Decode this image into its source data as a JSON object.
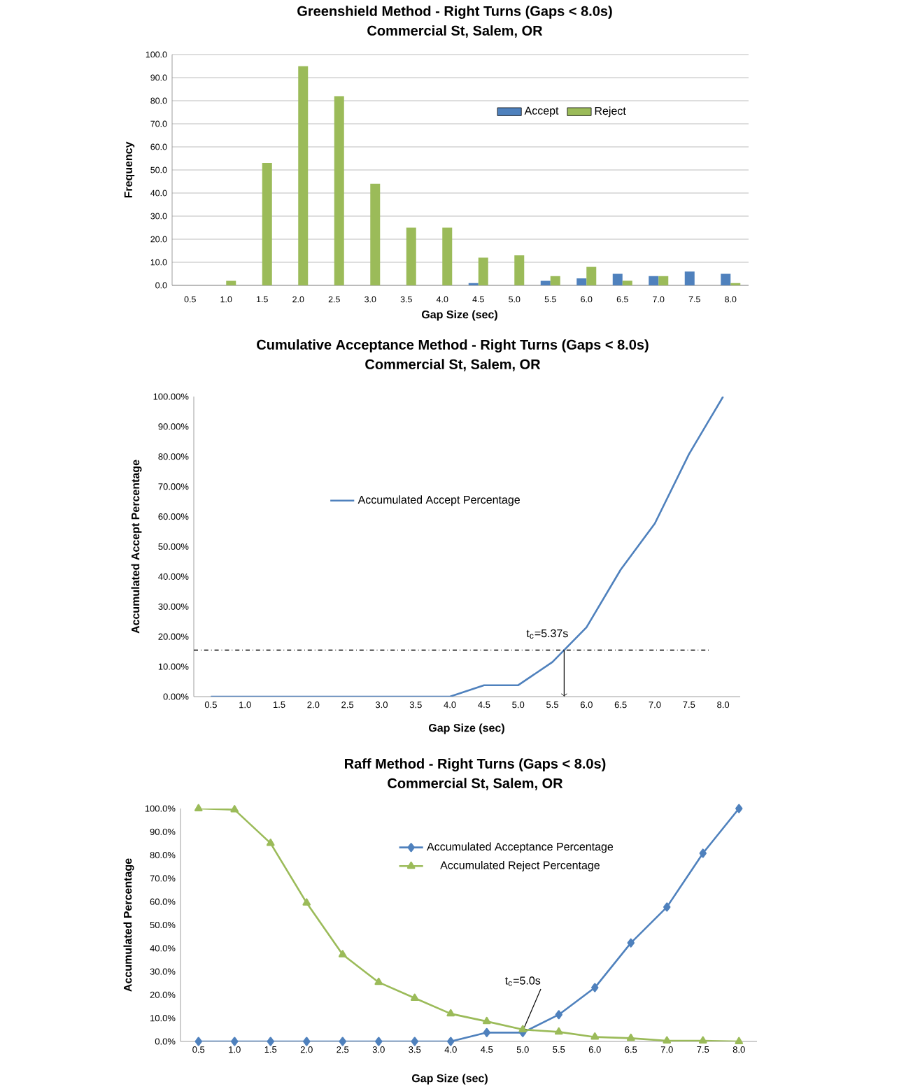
{
  "chart_data": [
    {
      "type": "bar",
      "title": "Greenshield Method - Right Turns (Gaps < 8.0s)",
      "subtitle": "Commercial St, Salem, OR",
      "xlabel": "Gap Size (sec)",
      "ylabel": "Frequency",
      "categories": [
        "0.5",
        "1.0",
        "1.5",
        "2.0",
        "2.5",
        "3.0",
        "3.5",
        "4.0",
        "4.5",
        "5.0",
        "5.5",
        "6.0",
        "6.5",
        "7.0",
        "7.5",
        "8.0"
      ],
      "series": [
        {
          "name": "Accept",
          "color": "#4f81bd",
          "values": [
            0,
            0,
            0,
            0,
            0,
            0,
            0,
            0,
            1,
            0,
            2,
            3,
            5,
            4,
            6,
            5
          ]
        },
        {
          "name": "Reject",
          "color": "#9bbb59",
          "values": [
            0,
            2,
            53,
            95,
            82,
            44,
            25,
            25,
            12,
            13,
            4,
            8,
            2,
            4,
            0,
            1
          ]
        }
      ],
      "ylim": [
        0,
        100
      ],
      "yticks": [
        {
          "value": 0,
          "label": "0.0"
        },
        {
          "value": 10,
          "label": "10.0"
        },
        {
          "value": 20,
          "label": "20.0"
        },
        {
          "value": 30,
          "label": "30.0"
        },
        {
          "value": 40,
          "label": "40.0"
        },
        {
          "value": 50,
          "label": "50.0"
        },
        {
          "value": 60,
          "label": "60.0"
        },
        {
          "value": 70,
          "label": "70.0"
        },
        {
          "value": 80,
          "label": "80.0"
        },
        {
          "value": 90,
          "label": "90.0"
        },
        {
          "value": 100,
          "label": "100.0"
        }
      ],
      "grid": "y",
      "legend": "top right"
    },
    {
      "type": "line",
      "title": "Cumulative Acceptance Method - Right Turns (Gaps < 8.0s)",
      "subtitle": "Commercial St, Salem, OR",
      "xlabel": "Gap Size (sec)",
      "ylabel": "Accumulated Accept Percentage",
      "categories": [
        "0.5",
        "1.0",
        "1.5",
        "2.0",
        "2.5",
        "3.0",
        "3.5",
        "4.0",
        "4.5",
        "5.0",
        "5.5",
        "6.0",
        "6.5",
        "7.0",
        "7.5",
        "8.0"
      ],
      "series": [
        {
          "name": "Accumulated Accept Percentage",
          "color": "#4f81bd",
          "values": [
            0,
            0,
            0,
            0,
            0,
            0,
            0,
            0,
            3.8,
            3.8,
            11.5,
            23.1,
            42.3,
            57.7,
            80.8,
            100
          ]
        }
      ],
      "ylim": [
        0,
        100
      ],
      "yticks": [
        {
          "value": 0,
          "label": "0.00%"
        },
        {
          "value": 10,
          "label": "10.00%"
        },
        {
          "value": 20,
          "label": "20.00%"
        },
        {
          "value": 30,
          "label": "30.00%"
        },
        {
          "value": 40,
          "label": "40.00%"
        },
        {
          "value": 50,
          "label": "50.00%"
        },
        {
          "value": 60,
          "label": "60.00%"
        },
        {
          "value": 70,
          "label": "70.00%"
        },
        {
          "value": 80,
          "label": "80.00%"
        },
        {
          "value": 90,
          "label": "90.00%"
        },
        {
          "value": 100,
          "label": "100.00%"
        }
      ],
      "ref_lines": [
        {
          "axis": "y",
          "value": 15.5,
          "color": "#000000",
          "line_style": "dashdot"
        }
      ],
      "annotations": [
        {
          "text": "t$_{c}$=5.37s",
          "y": 15.5
        }
      ],
      "legend": "top left",
      "marker": "none"
    },
    {
      "type": "line",
      "title": "Raff Method - Right Turns (Gaps < 8.0s)",
      "subtitle": "Commercial St, Salem, OR",
      "xlabel": "Gap Size (sec)",
      "ylabel": "Accumulated Percentage",
      "categories": [
        "0.5",
        "1.0",
        "1.5",
        "2.0",
        "2.5",
        "3.0",
        "3.5",
        "4.0",
        "4.5",
        "5.0",
        "5.5",
        "6.0",
        "6.5",
        "7.0",
        "7.5",
        "8.0"
      ],
      "series": [
        {
          "name": "Accumulated Acceptance Percentage",
          "color": "#4f81bd",
          "marker": "diamond",
          "values": [
            0,
            0,
            0,
            0,
            0,
            0,
            0,
            0,
            3.8,
            3.8,
            11.5,
            23.1,
            42.3,
            57.7,
            80.8,
            100
          ]
        },
        {
          "name": "Accumulated Reject Percentage",
          "color": "#9bbb59",
          "marker": "triangle",
          "values": [
            100,
            99.5,
            85.1,
            59.5,
            37.3,
            25.4,
            18.6,
            11.9,
            8.6,
            5.1,
            4.1,
            1.9,
            1.4,
            0.3,
            0.3,
            0
          ]
        }
      ],
      "ylim": [
        0,
        100
      ],
      "yticks": [
        {
          "value": 0,
          "label": "0.0%"
        },
        {
          "value": 10,
          "label": "10.0%"
        },
        {
          "value": 20,
          "label": "20.0%"
        },
        {
          "value": 30,
          "label": "30.0%"
        },
        {
          "value": 40,
          "label": "40.0%"
        },
        {
          "value": 50,
          "label": "50.0%"
        },
        {
          "value": 60,
          "label": "60.0%"
        },
        {
          "value": 70,
          "label": "70.0%"
        },
        {
          "value": 80,
          "label": "80.0%"
        },
        {
          "value": 90,
          "label": "90.0%"
        },
        {
          "value": 100,
          "label": "100.0%"
        }
      ],
      "annotations": [
        {
          "text": "t$_{c}$=5.0s",
          "x": "5.0",
          "y": 4.5
        }
      ],
      "legend": "top"
    }
  ]
}
